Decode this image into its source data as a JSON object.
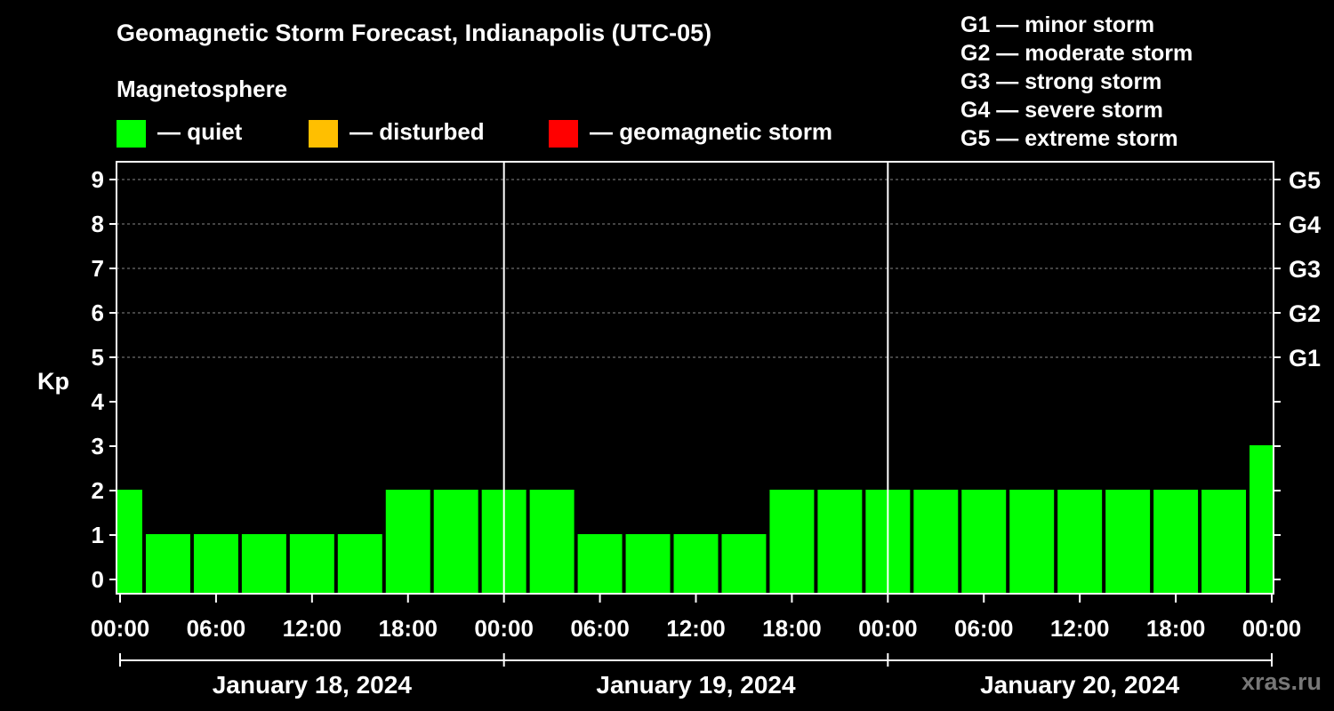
{
  "header": {
    "title": "Geomagnetic Storm Forecast, Indianapolis (UTC-05)",
    "magnetosphere_label": "Magnetosphere"
  },
  "legend": [
    {
      "label": "— quiet",
      "color": "#00ff00"
    },
    {
      "label": "— disturbed",
      "color": "#ffbf00"
    },
    {
      "label": "— geomagnetic storm",
      "color": "#ff0000"
    }
  ],
  "storm_scale": [
    "G1 — minor storm",
    "G2 — moderate storm",
    "G3 — strong storm",
    "G4 — severe storm",
    "G5 — extreme storm"
  ],
  "watermark": "xras.ru",
  "chart_data": {
    "type": "bar",
    "ylabel": "Kp",
    "ylim": [
      0,
      9
    ],
    "y_ticks": [
      "0",
      "1",
      "2",
      "3",
      "4",
      "5",
      "6",
      "7",
      "8",
      "9"
    ],
    "right_axis_labels": [
      {
        "kp": 5,
        "label": "G1"
      },
      {
        "kp": 6,
        "label": "G2"
      },
      {
        "kp": 7,
        "label": "G3"
      },
      {
        "kp": 8,
        "label": "G4"
      },
      {
        "kp": 9,
        "label": "G5"
      }
    ],
    "x_tick_labels": [
      "00:00",
      "06:00",
      "12:00",
      "18:00",
      "00:00",
      "06:00",
      "12:00",
      "18:00",
      "00:00",
      "06:00",
      "12:00",
      "18:00",
      "00:00"
    ],
    "days": [
      "January 18, 2024",
      "January 19, 2024",
      "January 20, 2024"
    ],
    "bar_start_hours": [
      -1.5,
      1.5,
      4.5,
      7.5,
      10.5,
      13.5,
      16.5,
      19.5,
      22.5,
      25.5,
      28.5,
      31.5,
      34.5,
      37.5,
      40.5,
      43.5,
      46.5,
      49.5,
      52.5,
      55.5,
      58.5,
      61.5,
      64.5,
      67.5,
      70.5
    ],
    "values": [
      2,
      1,
      1,
      1,
      1,
      1,
      2,
      2,
      2,
      2,
      1,
      1,
      1,
      1,
      2,
      2,
      2,
      2,
      2,
      2,
      2,
      2,
      2,
      2,
      3
    ],
    "status_colors": {
      "quiet": "#00ff00",
      "disturbed": "#ffbf00",
      "storm": "#ff0000"
    },
    "grid": true
  }
}
